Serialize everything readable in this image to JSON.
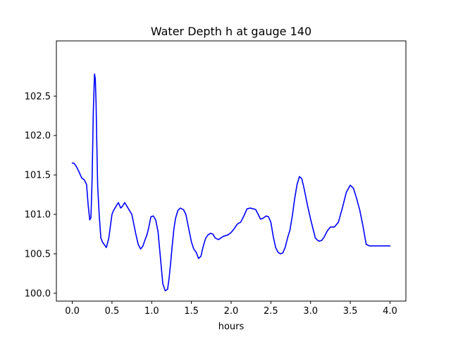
{
  "chart_data": {
    "type": "line",
    "title": "Water Depth h at gauge 140",
    "xlabel": "hours",
    "ylabel": "",
    "xlim": [
      -0.2,
      4.2
    ],
    "ylim": [
      99.9,
      103.2
    ],
    "xticks": [
      0.0,
      0.5,
      1.0,
      1.5,
      2.0,
      2.5,
      3.0,
      3.5,
      4.0
    ],
    "xtick_labels": [
      "0.0",
      "0.5",
      "1.0",
      "1.5",
      "2.0",
      "2.5",
      "3.0",
      "3.5",
      "4.0"
    ],
    "yticks": [
      100.0,
      100.5,
      101.0,
      101.5,
      102.0,
      102.5
    ],
    "ytick_labels": [
      "100.0",
      "100.5",
      "101.0",
      "101.5",
      "102.0",
      "102.5"
    ],
    "grid": false,
    "legend": "none",
    "series": [
      {
        "color": "#0000ff",
        "x": [
          0.0,
          0.02,
          0.05,
          0.08,
          0.12,
          0.15,
          0.18,
          0.2,
          0.22,
          0.235,
          0.25,
          0.265,
          0.28,
          0.29,
          0.3,
          0.31,
          0.32,
          0.34,
          0.36,
          0.38,
          0.4,
          0.43,
          0.46,
          0.48,
          0.5,
          0.52,
          0.55,
          0.58,
          0.61,
          0.63,
          0.66,
          0.69,
          0.72,
          0.75,
          0.78,
          0.8,
          0.83,
          0.86,
          0.89,
          0.91,
          0.94,
          0.96,
          0.99,
          1.02,
          1.05,
          1.08,
          1.11,
          1.14,
          1.17,
          1.2,
          1.22,
          1.24,
          1.26,
          1.28,
          1.3,
          1.33,
          1.36,
          1.4,
          1.43,
          1.46,
          1.5,
          1.53,
          1.56,
          1.59,
          1.62,
          1.65,
          1.68,
          1.71,
          1.74,
          1.77,
          1.8,
          1.84,
          1.87,
          1.9,
          1.93,
          1.96,
          2.0,
          2.04,
          2.08,
          2.12,
          2.16,
          2.2,
          2.24,
          2.28,
          2.31,
          2.34,
          2.37,
          2.4,
          2.44,
          2.47,
          2.5,
          2.53,
          2.56,
          2.59,
          2.62,
          2.65,
          2.68,
          2.71,
          2.74,
          2.77,
          2.8,
          2.83,
          2.86,
          2.89,
          2.92,
          2.96,
          3.0,
          3.03,
          3.06,
          3.09,
          3.11,
          3.14,
          3.17,
          3.21,
          3.25,
          3.3,
          3.35,
          3.4,
          3.45,
          3.5,
          3.54,
          3.58,
          3.62,
          3.66,
          3.7,
          3.74,
          3.78,
          3.81,
          3.84,
          3.87,
          3.9,
          3.93,
          3.96,
          4.0
        ],
        "y": [
          101.65,
          101.65,
          101.61,
          101.55,
          101.46,
          101.44,
          101.38,
          101.12,
          100.93,
          100.96,
          101.45,
          102.3,
          102.78,
          102.72,
          102.4,
          101.85,
          101.35,
          100.98,
          100.7,
          100.65,
          100.62,
          100.58,
          100.7,
          100.85,
          101.0,
          101.05,
          101.1,
          101.15,
          101.08,
          101.1,
          101.15,
          101.1,
          101.05,
          101.0,
          100.85,
          100.75,
          100.62,
          100.56,
          100.6,
          100.66,
          100.74,
          100.82,
          100.97,
          100.98,
          100.93,
          100.78,
          100.45,
          100.12,
          100.03,
          100.05,
          100.2,
          100.4,
          100.62,
          100.82,
          100.95,
          101.05,
          101.08,
          101.06,
          101.0,
          100.85,
          100.65,
          100.56,
          100.52,
          100.44,
          100.47,
          100.6,
          100.7,
          100.74,
          100.76,
          100.75,
          100.7,
          100.68,
          100.7,
          100.72,
          100.73,
          100.74,
          100.77,
          100.82,
          100.88,
          100.9,
          100.98,
          101.07,
          101.08,
          101.07,
          101.06,
          101.0,
          100.94,
          100.95,
          100.98,
          100.97,
          100.9,
          100.72,
          100.58,
          100.52,
          100.5,
          100.51,
          100.58,
          100.7,
          100.8,
          100.98,
          101.2,
          101.38,
          101.48,
          101.45,
          101.32,
          101.12,
          100.94,
          100.82,
          100.7,
          100.67,
          100.66,
          100.67,
          100.71,
          100.79,
          100.84,
          100.84,
          100.9,
          101.08,
          101.28,
          101.37,
          101.33,
          101.2,
          101.05,
          100.85,
          100.62,
          100.6,
          100.6,
          100.6,
          100.6,
          100.6,
          100.6,
          100.6,
          100.6,
          100.6
        ]
      }
    ]
  }
}
